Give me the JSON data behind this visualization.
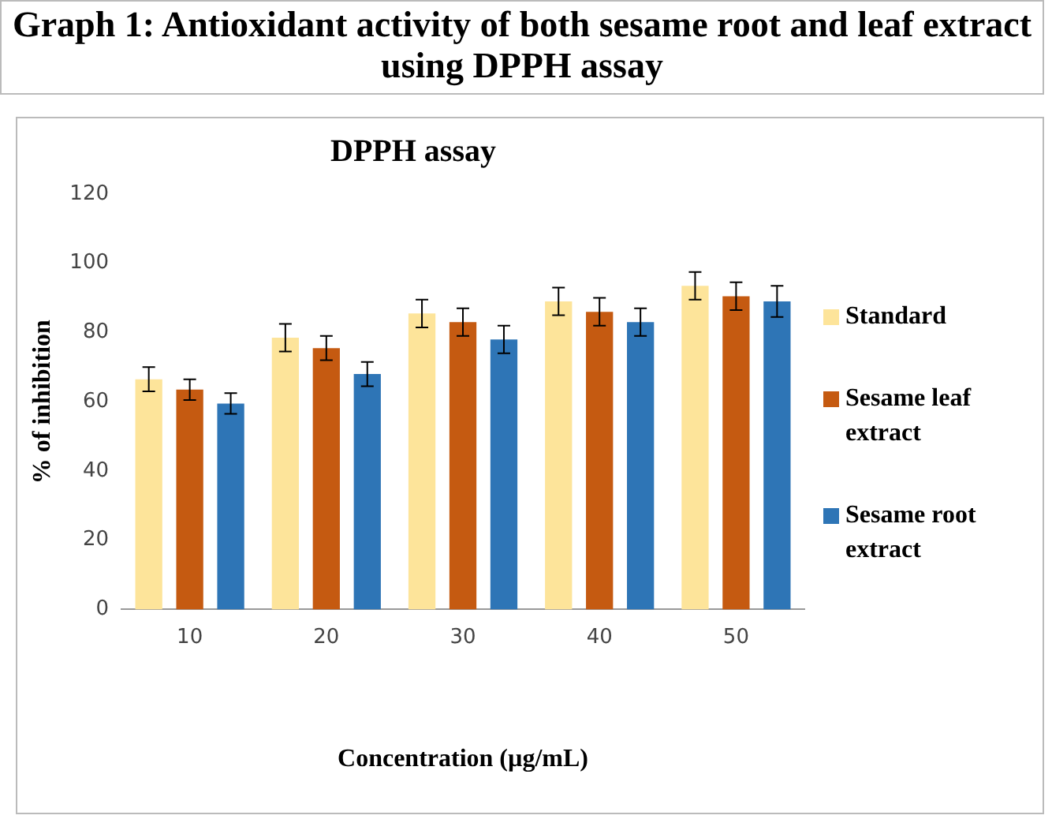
{
  "chart_data": {
    "type": "bar",
    "title": "Graph 1: Antioxidant activity of both sesame root and leaf extract using DPPH assay",
    "subtitle": "DPPH assay",
    "xlabel": "Concentration (µg/mL)",
    "ylabel": "% of inhibition",
    "categories": [
      "10",
      "20",
      "30",
      "40",
      "50"
    ],
    "series": [
      {
        "name": "Standard",
        "color": "#fde49a",
        "values": [
          66.5,
          78.5,
          85.5,
          89,
          93.5
        ],
        "errors": [
          3.5,
          4,
          4,
          4,
          4
        ]
      },
      {
        "name": "Sesame leaf extract",
        "color": "#c55a11",
        "values": [
          63.5,
          75.5,
          83,
          86,
          90.5
        ],
        "errors": [
          3,
          3.5,
          4,
          4,
          4
        ]
      },
      {
        "name": "Sesame root extract",
        "color": "#2e75b6",
        "values": [
          59.5,
          68,
          78,
          83,
          89
        ],
        "errors": [
          3,
          3.5,
          4,
          4,
          4.5
        ]
      }
    ],
    "ylim": [
      0,
      120
    ],
    "yticks": [
      0,
      20,
      40,
      60,
      80,
      100,
      120
    ],
    "grid": false,
    "legend": "right"
  }
}
